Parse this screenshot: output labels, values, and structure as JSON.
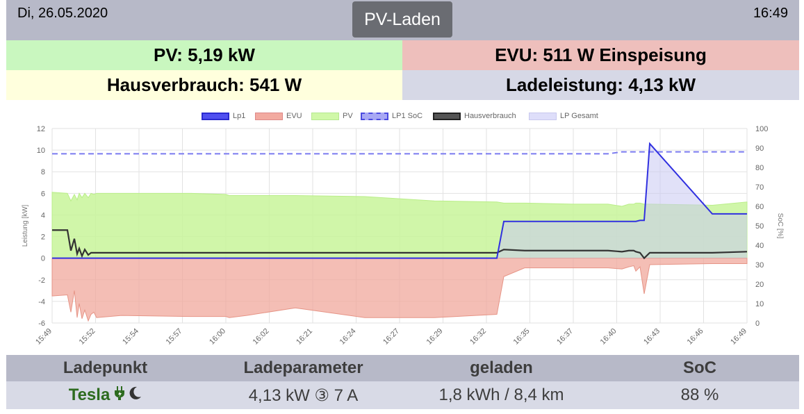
{
  "header": {
    "date": "Di, 26.05.2020",
    "mode": "PV-Laden",
    "time": "16:49"
  },
  "summary": {
    "pv": "PV: 5,19 kW",
    "evu": "EVU: 511 W Einspeisung",
    "house": "Hausverbrauch: 541 W",
    "charge": "Ladeleistung: 4,13 kW"
  },
  "colors": {
    "pv_bg": "#c9f7bf",
    "evu_bg": "#eebfbc",
    "house_bg": "#ffffdd",
    "charge_bg": "#d6d8e6",
    "header_bg": "#b7b9c8",
    "lp1": "#3030e0",
    "evu_fill": "#f0a89c",
    "pv_fill": "#c8f59a",
    "soc": "#7a7af0",
    "house": "#333333",
    "lp_total": "#dcdcf8",
    "tesla": "#2d6b1f"
  },
  "chart_data": {
    "type": "line",
    "legend": [
      "Lp1",
      "EVU",
      "PV",
      "LP1 SoC",
      "Hausverbrauch",
      "LP Gesamt"
    ],
    "legend_position": "top",
    "ylabel_left": "Leistung [kW]",
    "ylabel_right": "SoC [%]",
    "ylim_left": [
      -6,
      12
    ],
    "ylim_right": [
      0,
      100
    ],
    "yticks_left": [
      "12",
      "10",
      "8",
      "6",
      "4",
      "2",
      "0",
      "-2",
      "-4",
      "-6"
    ],
    "yticks_right": [
      "100",
      "90",
      "80",
      "70",
      "60",
      "50",
      "40",
      "30",
      "20",
      "10",
      "0"
    ],
    "xtick_labels": [
      "15:49",
      "15:52",
      "15:54",
      "15:57",
      "16:00",
      "16:02",
      "16:21",
      "16:24",
      "16:27",
      "16:29",
      "16:32",
      "16:35",
      "16:37",
      "16:40",
      "16:43",
      "16:46",
      "16:49"
    ],
    "x": [
      0,
      2.2,
      2.7,
      3.2,
      3.6,
      3.9,
      4.3,
      4.7,
      5.2,
      5.6,
      6.0,
      6.4,
      10,
      20,
      25,
      25.5,
      28,
      35,
      45,
      55,
      64,
      65,
      68,
      75,
      80,
      82,
      83,
      83.7,
      84,
      84.6,
      85.2,
      86,
      95,
      100
    ],
    "series": [
      {
        "name": "PV",
        "values": [
          6.1,
          6.0,
          5.3,
          5.9,
          5.4,
          6.0,
          5.6,
          6.0,
          5.6,
          6.0,
          5.9,
          6.0,
          6.0,
          6.0,
          5.9,
          5.8,
          5.8,
          5.8,
          5.7,
          5.3,
          5.2,
          5.1,
          5.1,
          5.0,
          5.0,
          4.8,
          5.0,
          5.0,
          5.1,
          5.1,
          5.0,
          5.0,
          4.9,
          5.2
        ]
      },
      {
        "name": "EVU",
        "values": [
          -3.5,
          -3.4,
          -5.0,
          -3.0,
          -5.5,
          -4.2,
          -5.6,
          -4.8,
          -5.8,
          -5.2,
          -5.0,
          -5.5,
          -5.3,
          -5.4,
          -5.4,
          -5.5,
          -5.3,
          -4.6,
          -5.5,
          -5.5,
          -5.2,
          -1.7,
          -0.9,
          -0.9,
          -0.9,
          -1.0,
          -0.8,
          -0.7,
          -1.2,
          -0.8,
          -3.3,
          -0.6,
          -0.5,
          -0.5
        ]
      },
      {
        "name": "Lp1",
        "values": [
          0,
          0,
          0,
          0,
          0,
          0,
          0,
          0,
          0,
          0,
          0,
          0,
          0,
          0,
          0,
          0,
          0,
          0,
          0,
          0,
          0,
          3.4,
          3.4,
          3.4,
          3.4,
          3.4,
          3.4,
          3.4,
          3.4,
          3.5,
          3.5,
          10.6,
          4.1,
          4.1
        ]
      },
      {
        "name": "Hausverbrauch",
        "values": [
          2.6,
          2.6,
          0.7,
          1.8,
          0.4,
          0.9,
          0.2,
          0.8,
          0.3,
          0.5,
          0.5,
          0.5,
          0.5,
          0.5,
          0.5,
          0.5,
          0.5,
          0.5,
          0.5,
          0.5,
          0.5,
          0.8,
          0.7,
          0.7,
          0.7,
          0.6,
          0.7,
          0.7,
          0.6,
          0.5,
          0.0,
          0.5,
          0.5,
          0.6
        ]
      },
      {
        "name": "LP1 SoC",
        "values": [
          87,
          87,
          87,
          87,
          87,
          87,
          87,
          87,
          87,
          87,
          87,
          87,
          87,
          87,
          87,
          87,
          87,
          87,
          87,
          87,
          87,
          87,
          87,
          87,
          87,
          88,
          88,
          88,
          88,
          88,
          88,
          88,
          88,
          88
        ]
      },
      {
        "name": "LP Gesamt",
        "values": [
          0,
          0,
          0,
          0,
          0,
          0,
          0,
          0,
          0,
          0,
          0,
          0,
          0,
          0,
          0,
          0,
          0,
          0,
          0,
          0,
          0,
          3.4,
          3.4,
          3.4,
          3.4,
          3.4,
          3.4,
          3.4,
          3.4,
          3.5,
          3.5,
          10.6,
          4.1,
          4.1
        ]
      }
    ],
    "grid": true
  },
  "table": {
    "headers": [
      "Ladepunkt",
      "Ladeparameter",
      "geladen",
      "SoC"
    ],
    "row": {
      "name": "Tesla",
      "params": "4,13 kW ③ 7 A",
      "charged": "1,8 kWh / 8,4 km",
      "soc": "88 %"
    },
    "icons": [
      "plug-icon",
      "moon-icon"
    ]
  }
}
